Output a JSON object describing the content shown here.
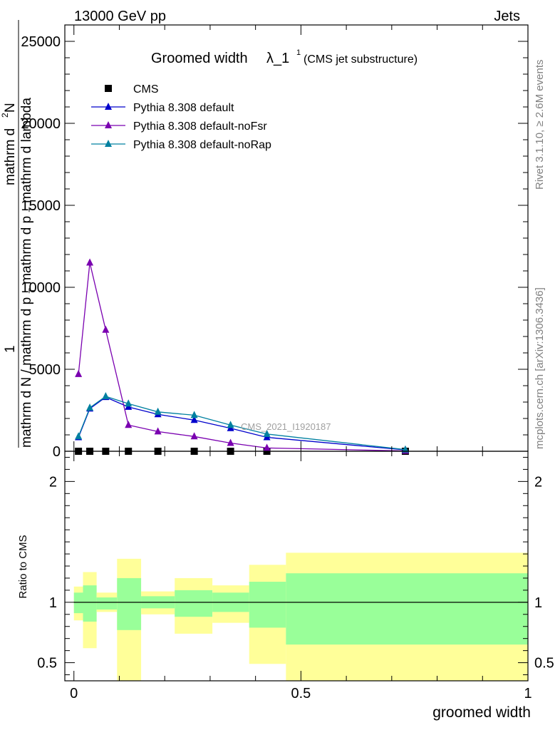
{
  "header": {
    "left": "13000 GeV pp",
    "right": "Jets"
  },
  "side_labels": {
    "rivet": "Rivet 3.1.10, ≥ 2.6M events",
    "mcplots": "mcplots.cern.ch [arXiv:1306.3436]"
  },
  "watermark": "CMS_2021_I1920187",
  "chart_data": [
    {
      "type": "line",
      "title_main": "Groomed width",
      "title_symbol": "λ_1",
      "title_sup": "1",
      "title_note": "(CMS jet substructure)",
      "ylabel_numerator_parts": [
        "1",
        "mathrm d",
        "2",
        "N"
      ],
      "ylabel_denominator_parts": [
        "mathrm d N / mathrm d p",
        "T",
        " mathrm d p",
        "T",
        " mathrm d lambda"
      ],
      "xlim": [
        -0.02,
        1.0
      ],
      "ylim": [
        0,
        26000
      ],
      "yticks": [
        0,
        5000,
        10000,
        15000,
        20000,
        25000
      ],
      "ytick_labels": [
        "0",
        "5000",
        "10000",
        "15000",
        "20000",
        "25000"
      ],
      "legend_position": "top-left",
      "series": [
        {
          "name": "CMS",
          "marker": "square",
          "color": "#000000",
          "x": [
            0.01,
            0.035,
            0.07,
            0.12,
            0.185,
            0.265,
            0.345,
            0.425,
            0.73
          ],
          "y": [
            0,
            0,
            0,
            0,
            0,
            0,
            0,
            0,
            0
          ]
        },
        {
          "name": "Pythia 8.308 default",
          "marker": "triangle",
          "color": "#0000cc",
          "x": [
            0.01,
            0.035,
            0.07,
            0.12,
            0.185,
            0.265,
            0.345,
            0.425,
            0.73
          ],
          "y": [
            850,
            2600,
            3300,
            2700,
            2250,
            1900,
            1400,
            850,
            80
          ]
        },
        {
          "name": "Pythia 8.308 default-noFsr",
          "marker": "triangle",
          "color": "#7a00b0",
          "x": [
            0.01,
            0.035,
            0.07,
            0.12,
            0.185,
            0.265,
            0.345,
            0.425,
            0.73
          ],
          "y": [
            4700,
            11500,
            7400,
            1600,
            1200,
            900,
            500,
            200,
            20
          ]
        },
        {
          "name": "Pythia 8.308 default-noRap",
          "marker": "triangle",
          "color": "#0080a0",
          "x": [
            0.01,
            0.035,
            0.07,
            0.12,
            0.185,
            0.265,
            0.345,
            0.425,
            0.73
          ],
          "y": [
            900,
            2650,
            3350,
            2900,
            2400,
            2200,
            1600,
            1050,
            100
          ]
        }
      ]
    },
    {
      "type": "area",
      "ylabel": "Ratio to CMS",
      "xlabel": "groomed width",
      "xlim": [
        -0.02,
        1.0
      ],
      "ylim": [
        0.35,
        2.25
      ],
      "yticks": [
        0.5,
        1,
        2
      ],
      "ytick_labels": [
        "0.5",
        "1",
        "2"
      ],
      "xticks": [
        0,
        0.5,
        1
      ],
      "xtick_labels": [
        "0",
        "0.5",
        "1"
      ],
      "reference_line": 1,
      "bands": [
        {
          "x0": 0.0,
          "x1": 0.02,
          "green": [
            0.91,
            1.08
          ],
          "yellow": [
            0.85,
            1.13
          ]
        },
        {
          "x0": 0.02,
          "x1": 0.05,
          "green": [
            0.84,
            1.14
          ],
          "yellow": [
            0.62,
            1.25
          ]
        },
        {
          "x0": 0.05,
          "x1": 0.095,
          "green": [
            0.94,
            1.04
          ],
          "yellow": [
            0.92,
            1.08
          ]
        },
        {
          "x0": 0.095,
          "x1": 0.148,
          "green": [
            0.77,
            1.2
          ],
          "yellow": [
            0.3,
            1.36
          ]
        },
        {
          "x0": 0.148,
          "x1": 0.222,
          "green": [
            0.95,
            1.05
          ],
          "yellow": [
            0.9,
            1.09
          ]
        },
        {
          "x0": 0.222,
          "x1": 0.305,
          "green": [
            0.88,
            1.1
          ],
          "yellow": [
            0.74,
            1.2
          ]
        },
        {
          "x0": 0.305,
          "x1": 0.386,
          "green": [
            0.92,
            1.08
          ],
          "yellow": [
            0.83,
            1.14
          ]
        },
        {
          "x0": 0.386,
          "x1": 0.467,
          "green": [
            0.79,
            1.17
          ],
          "yellow": [
            0.49,
            1.31
          ]
        },
        {
          "x0": 0.467,
          "x1": 1.0,
          "green": [
            0.65,
            1.24
          ],
          "yellow": [
            0.25,
            1.41
          ]
        }
      ]
    }
  ]
}
